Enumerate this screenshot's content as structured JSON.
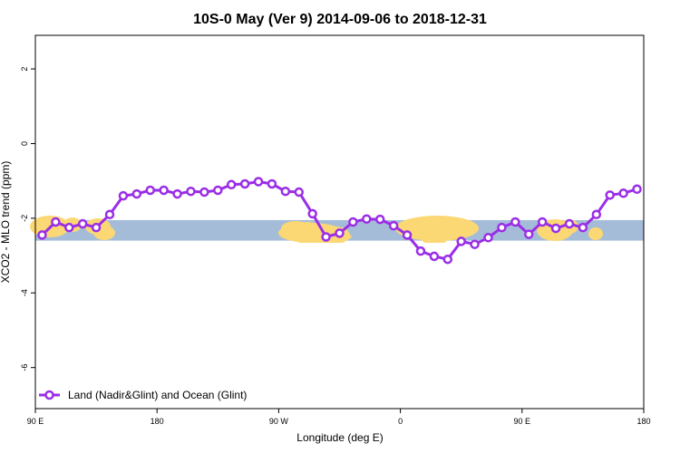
{
  "chart_data": {
    "type": "line",
    "title": "10S-0 May (Ver 9)   2014-09-06 to 2018-12-31",
    "xlabel": "Longitude (deg E)",
    "ylabel": "XCO2 - MLO trend (ppm)",
    "xlim": [
      90,
      540
    ],
    "ylim": [
      -7.1,
      2.9
    ],
    "x_ticks": [
      {
        "value": 90,
        "label": "90 E"
      },
      {
        "value": 180,
        "label": "180"
      },
      {
        "value": 270,
        "label": "90 W"
      },
      {
        "value": 360,
        "label": "0"
      },
      {
        "value": 450,
        "label": "90 E"
      },
      {
        "value": 540,
        "label": "180"
      }
    ],
    "y_ticks": [
      {
        "value": 2,
        "label": "2"
      },
      {
        "value": 0,
        "label": "0"
      },
      {
        "value": -2,
        "label": "-2"
      },
      {
        "value": -4,
        "label": "-4"
      },
      {
        "value": -6,
        "label": "-6"
      }
    ],
    "map_strip": {
      "y_range": [
        -2.6,
        -2.05
      ],
      "ocean_color": "#a5bcd9",
      "land_color": "#fcd874"
    },
    "series": [
      {
        "name": "Land (Nadir&Glint) and Ocean (Glint)",
        "color": "#9a2ee6",
        "x": [
          95,
          105,
          115,
          125,
          135,
          145,
          155,
          165,
          175,
          185,
          195,
          205,
          215,
          225,
          235,
          245,
          255,
          265,
          275,
          285,
          295,
          305,
          315,
          325,
          335,
          345,
          355,
          365,
          375,
          385,
          395,
          405,
          415,
          425,
          435,
          445,
          455,
          465,
          475,
          485,
          495,
          505,
          515,
          525,
          535
        ],
        "y": [
          -2.45,
          -2.1,
          -2.25,
          -2.15,
          -2.25,
          -1.9,
          -1.4,
          -1.35,
          -1.25,
          -1.25,
          -1.35,
          -1.28,
          -1.3,
          -1.25,
          -1.1,
          -1.08,
          -1.02,
          -1.08,
          -1.28,
          -1.3,
          -1.88,
          -2.5,
          -2.4,
          -2.1,
          -2.02,
          -2.03,
          -2.2,
          -2.45,
          -2.88,
          -3.02,
          -3.1,
          -2.62,
          -2.7,
          -2.52,
          -2.25,
          -2.1,
          -2.43,
          -2.1,
          -2.27,
          -2.15,
          -2.25,
          -1.9,
          -1.38,
          -1.33,
          -1.22
        ]
      }
    ],
    "legend_position": "bottom-left",
    "grid": false
  }
}
